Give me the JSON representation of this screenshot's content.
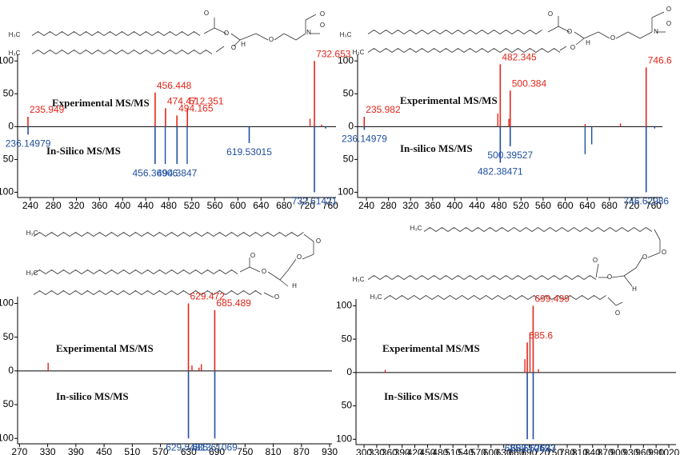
{
  "chart_data": [
    {
      "type": "mirror",
      "structure": [
        "H₃C",
        "H₃C",
        "O",
        "O",
        "O",
        "O",
        "H",
        "N",
        "O",
        "O"
      ],
      "xlim": [
        218,
        770
      ],
      "xticks": [
        240,
        280,
        320,
        360,
        400,
        440,
        480,
        520,
        560,
        600,
        640,
        680,
        720,
        760
      ],
      "ylim": [
        -108,
        110
      ],
      "yticks": [
        {
          "value": -100,
          "label": "100"
        },
        {
          "value": -50,
          "label": "50"
        },
        0,
        50,
        100
      ],
      "series": [
        {
          "name": "Experimental MS/MS",
          "color": "#e3261b",
          "x": [
            235.949,
            456.448,
            474.47,
            494.165,
            512.351,
            732.653
          ],
          "values": [
            15,
            52,
            28,
            17,
            28,
            100
          ],
          "minor_x": [
            725,
            745
          ],
          "minor_values": [
            12,
            3
          ]
        },
        {
          "name": "In-Silico MS/MS",
          "color": "#1f4fa0",
          "x": [
            236.14979,
            456.36906,
            494.3847,
            619.53015,
            732.61421
          ],
          "values": [
            -12,
            -57,
            -57,
            -25,
            -100
          ],
          "minor_x": [
            474,
            512,
            752
          ],
          "minor_values": [
            -57,
            -57,
            -3
          ]
        }
      ]
    },
    {
      "type": "mirror",
      "structure": [
        "H₃C",
        "H₃C",
        "O",
        "O",
        "O",
        "O",
        "H",
        "N",
        "O",
        "O"
      ],
      "xlim": [
        224,
        776
      ],
      "xticks": [
        240,
        280,
        320,
        360,
        400,
        440,
        480,
        520,
        560,
        600,
        640,
        680,
        720,
        760
      ],
      "ylim": [
        -108,
        110
      ],
      "yticks": [
        {
          "value": -100,
          "label": "100"
        },
        {
          "value": -50,
          "label": "50"
        },
        0,
        50,
        100
      ],
      "series": [
        {
          "name": "Experimental MS/MS",
          "color": "#e3261b",
          "x": [
            235.982,
            482.345,
            500.384,
            746.6
          ],
          "values": [
            15,
            95,
            55,
            90
          ],
          "minor_x": [
            478,
            498,
            636,
            700
          ],
          "minor_values": [
            20,
            12,
            4,
            5
          ]
        },
        {
          "name": "In-silico MS/MS",
          "color": "#1f4fa0",
          "x": [
            236.14979,
            482.38471,
            500.39527,
            746.62986
          ],
          "values": [
            -5,
            -55,
            -30,
            -100
          ],
          "minor_x": [
            636,
            648,
            762
          ],
          "minor_values": [
            -42,
            -27,
            -3
          ]
        }
      ]
    },
    {
      "type": "mirror",
      "structure": [
        "H₃C",
        "H₃C",
        "O",
        "O",
        "O",
        "O",
        "O",
        "H"
      ],
      "xlim": [
        266,
        935
      ],
      "xticks": [
        270,
        330,
        390,
        450,
        510,
        570,
        630,
        690,
        750,
        810,
        870,
        930
      ],
      "ylim": [
        -108,
        110
      ],
      "yticks": [
        {
          "value": -100,
          "label": "100"
        },
        {
          "value": -50,
          "label": "50"
        },
        0,
        50,
        100
      ],
      "series": [
        {
          "name": "Experimental MS/MS",
          "color": "#e3261b",
          "x": [
            629.472,
            685.489
          ],
          "values": [
            100,
            90
          ],
          "minor_x": [
            331,
            637,
            652,
            657
          ],
          "minor_values": [
            12,
            8,
            5,
            10
          ]
        },
        {
          "name": "In-silico MS/MS",
          "color": "#1f4fa0",
          "x": [
            629.54813,
            685.61069
          ],
          "values": [
            -100,
            -100
          ],
          "minor_x": [],
          "minor_values": []
        }
      ]
    },
    {
      "type": "mirror",
      "structure": [
        "H₃C",
        "H₃C",
        "H₃C",
        "O",
        "O",
        "O",
        "O",
        "O",
        "H"
      ],
      "xlim": [
        281,
        1037
      ],
      "xticks": [
        300,
        330,
        360,
        390,
        420,
        450,
        480,
        510,
        540,
        570,
        600,
        630,
        660,
        690,
        720,
        750,
        780,
        810,
        840,
        870,
        900,
        930,
        960,
        990,
        1020
      ],
      "ylim": [
        -108,
        110
      ],
      "yticks": [
        {
          "value": -100,
          "label": "100"
        },
        {
          "value": -50,
          "label": "50"
        },
        0,
        50,
        100
      ],
      "series": [
        {
          "name": "Experimental MS/MS",
          "color": "#e3261b",
          "x": [
            685.6,
            699.499
          ],
          "values": [
            45,
            100
          ],
          "minor_x": [
            350,
            680,
            692,
            712
          ],
          "minor_values": [
            4,
            20,
            60,
            5
          ]
        },
        {
          "name": "In-Silico MS/MS",
          "color": "#1f4fa0",
          "x": [
            685.61069,
            699.62633
          ],
          "values": [
            -100,
            -100
          ],
          "minor_x": [],
          "minor_values": []
        }
      ]
    }
  ]
}
